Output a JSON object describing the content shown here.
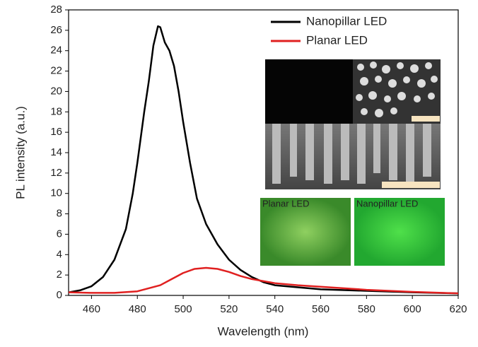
{
  "chart_data": {
    "type": "line",
    "x_label": "Wavelength (nm)",
    "y_label": "PL intensity (a.u.)",
    "xlim": [
      450,
      620
    ],
    "xticks": [
      460,
      480,
      500,
      520,
      540,
      560,
      580,
      600,
      620
    ],
    "ylim": [
      0,
      28
    ],
    "yticks": [
      0,
      2,
      4,
      6,
      8,
      10,
      12,
      14,
      16,
      18,
      20,
      22,
      24,
      26,
      28
    ],
    "legend": "top-right",
    "series": [
      {
        "name": "Nanopillar LED",
        "color": "#000000",
        "x": [
          450,
          455,
          460,
          465,
          470,
          475,
          478,
          480,
          483,
          485,
          487,
          489,
          490,
          492,
          494,
          496,
          498,
          500,
          503,
          506,
          510,
          515,
          520,
          525,
          530,
          535,
          540,
          550,
          560,
          580,
          600,
          620
        ],
        "values": [
          0.3,
          0.5,
          0.9,
          1.8,
          3.5,
          6.5,
          10,
          13,
          18,
          21,
          24.5,
          26.4,
          26.3,
          24.8,
          24,
          22.5,
          20,
          17,
          13,
          9.5,
          7,
          5,
          3.5,
          2.5,
          1.8,
          1.3,
          1.0,
          0.8,
          0.6,
          0.45,
          0.3,
          0.2
        ]
      },
      {
        "name": "Planar LED",
        "color": "#e02020",
        "x": [
          450,
          460,
          470,
          480,
          490,
          495,
          500,
          505,
          510,
          515,
          520,
          525,
          530,
          540,
          550,
          560,
          570,
          580,
          600,
          620
        ],
        "values": [
          0.3,
          0.25,
          0.25,
          0.4,
          1.0,
          1.6,
          2.2,
          2.6,
          2.7,
          2.6,
          2.3,
          1.9,
          1.6,
          1.2,
          1.0,
          0.85,
          0.7,
          0.55,
          0.35,
          0.2
        ]
      }
    ],
    "annotations": [
      "Planar LED",
      "Nanopillar LED"
    ]
  }
}
